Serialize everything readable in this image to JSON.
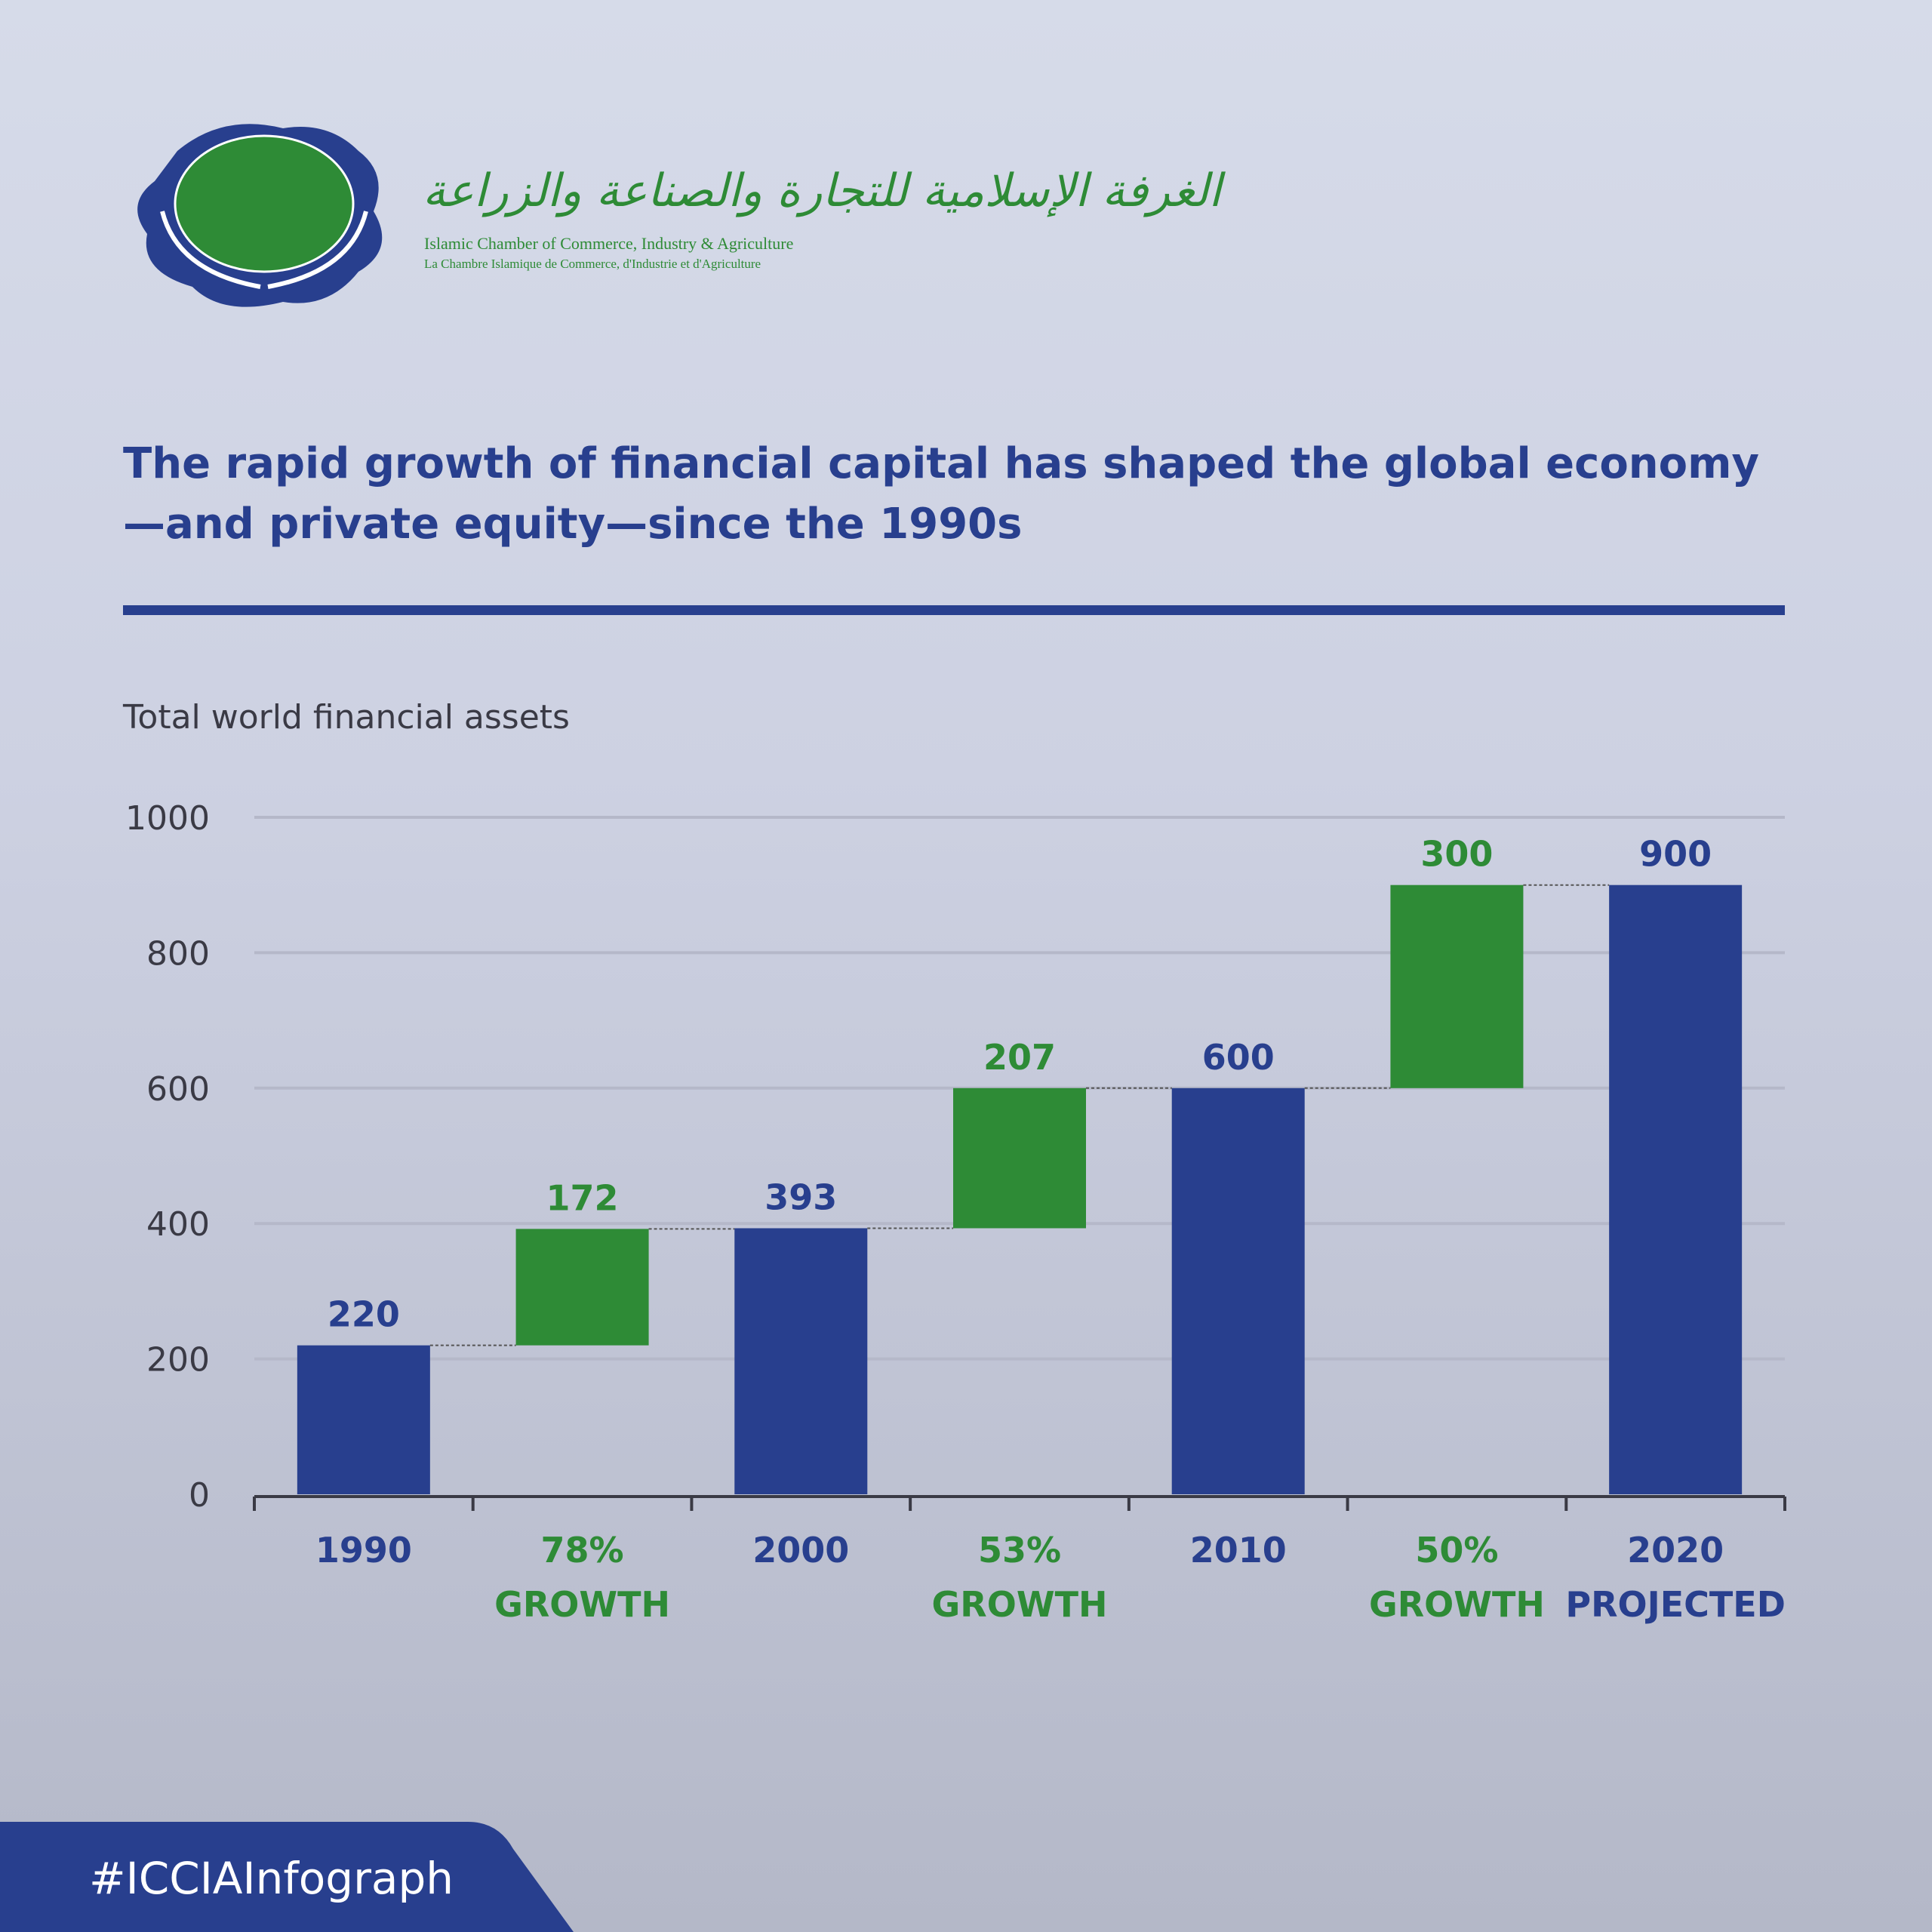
{
  "org": {
    "name_ar": "الغرفة الإسلامية للتجارة والصناعة والزراعة",
    "name_en": "Islamic Chamber of Commerce, Industry & Agriculture",
    "name_fr": "La Chambre Islamique de Commerce, d'Industrie et d'Agriculture"
  },
  "title": "The rapid growth of financial capital has shaped the global economy —and private equity—since the 1990s",
  "hashtag": "#ICCIAInfograph",
  "colors": {
    "total": "#283f8e",
    "growth": "#2e8b36",
    "grid": "#b5b8c9"
  },
  "chart_data": {
    "type": "bar",
    "subtype": "waterfall",
    "title": "Total world financial assets",
    "ylim": [
      0,
      1000
    ],
    "yticks": [
      0,
      200,
      400,
      600,
      800,
      1000
    ],
    "grid": true,
    "categories": [
      {
        "label": [
          "1990"
        ],
        "kind": "total",
        "value": 220,
        "data_label": "220"
      },
      {
        "label": [
          "78%",
          "GROWTH"
        ],
        "kind": "growth",
        "value": 172,
        "data_label": "172"
      },
      {
        "label": [
          "2000"
        ],
        "kind": "total",
        "value": 393,
        "data_label": "393"
      },
      {
        "label": [
          "53%",
          "GROWTH"
        ],
        "kind": "growth",
        "value": 207,
        "data_label": "207"
      },
      {
        "label": [
          "2010"
        ],
        "kind": "total",
        "value": 600,
        "data_label": "600"
      },
      {
        "label": [
          "50%",
          "GROWTH"
        ],
        "kind": "growth",
        "value": 300,
        "data_label": "300"
      },
      {
        "label": [
          "2020",
          "PROJECTED"
        ],
        "kind": "total",
        "value": 900,
        "data_label": "900"
      }
    ]
  }
}
